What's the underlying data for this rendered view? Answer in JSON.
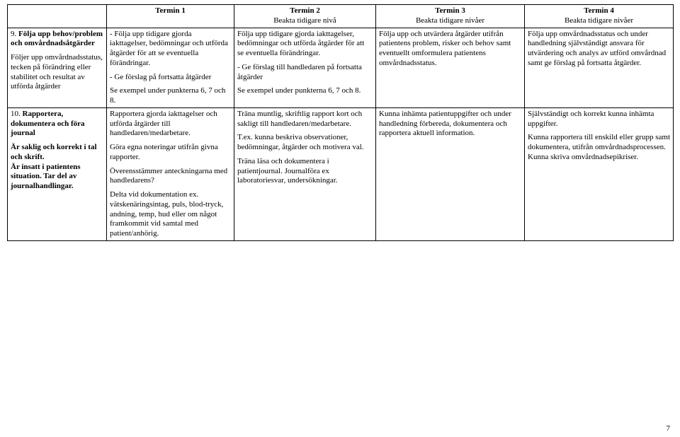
{
  "headers": {
    "c0": "",
    "c1": {
      "title": "Termin 1",
      "sub": ""
    },
    "c2": {
      "title": "Termin 2",
      "sub": "Beakta tidigare nivå"
    },
    "c3": {
      "title": "Termin 3",
      "sub": "Beakta tidigare nivåer"
    },
    "c4": {
      "title": "Termin 4",
      "sub": "Beakta tidigare nivåer"
    }
  },
  "row9": {
    "label_num": "9.",
    "label_title": "Följa upp behov/problem och omvårdnadsåtgärder",
    "label_desc": "Följer upp omvårdnadsstatus, tecken på förändring eller stabilitet och resultat av utförda åtgärder",
    "t1_p1": "- Följa upp tidigare gjorda iakttagelser, bedömningar och utförda åtgärder för att se eventuella förändringar.",
    "t1_p2": "- Ge förslag på fortsatta åtgärder",
    "t1_p3": "Se exempel under punkterna 6, 7 och 8.",
    "t2_p1": "Följa upp tidigare gjorda iakttagelser, bedömningar och utförda åtgärder för att se eventuella förändringar.",
    "t2_p2": "- Ge förslag till handledaren på fortsatta åtgärder",
    "t2_p3": "Se exempel under punkterna 6, 7 och 8.",
    "t3_p1": "Följa upp och utvärdera åtgärder utifrån patientens problem, risker och behov samt eventuellt omformulera patientens omvårdnadsstatus.",
    "t4_p1": "Följa upp omvårdnadsstatus och under handledning självständigt ansvara för utvärdering och analys av utförd omvårdnad samt ge förslag på fortsatta åtgärder."
  },
  "row10": {
    "label_num": "10.",
    "label_title": "Rapportera, dokumentera och föra journal",
    "label_desc": "Är saklig och korrekt i tal och skrift.\nÄr insatt i patientens situation. Tar del av journalhandlingar.",
    "t1_p1": "Rapportera gjorda iakttagelser och utförda åtgärder till handledaren/medarbetare.",
    "t1_p2": "Göra egna noteringar utifrån givna rapporter.",
    "t1_p3": "Överensstämmer anteckningarna med handledarens?",
    "t1_p4": "Delta vid dokumentation ex. vätskenäringsintag, puls, blod-tryck, andning, temp, hud eller om något framkommit vid samtal med patient/anhörig.",
    "t2_p1": "Träna muntlig, skriftlig rapport kort och sakligt till handledaren/medarbetare.",
    "t2_p2": "T.ex. kunna beskriva observationer, bedömningar, åtgärder och motivera val.",
    "t2_p3": "Träna läsa och dokumentera i patientjournal. Journalföra ex laboratoriesvar, undersökningar.",
    "t3_p1": "Kunna inhämta patientuppgifter och under handledning förbereda, dokumentera och rapportera aktuell information.",
    "t4_p1": "Självständigt och korrekt kunna inhämta uppgifter.",
    "t4_p2": "Kunna rapportera till enskild eller grupp samt dokumentera, utifrån omvårdnadsprocessen. Kunna skriva omvårdnadsepikriser."
  },
  "page_number": "7"
}
